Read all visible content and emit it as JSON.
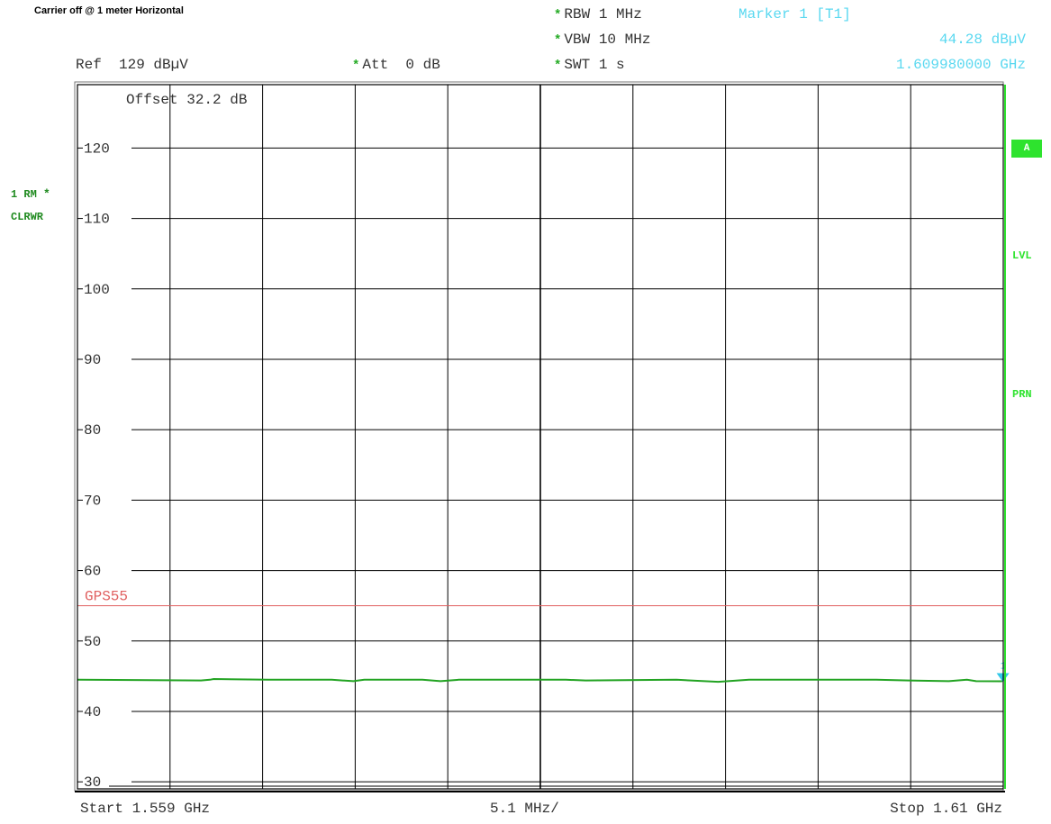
{
  "header": {
    "title": "Carrier off @ 1 meter Horizontal",
    "ref_label": "Ref",
    "ref_value": "129 dBµV",
    "att_label": "Att",
    "att_value": "0 dB",
    "rbw_label": "RBW",
    "rbw_value": "1 MHz",
    "vbw_label": "VBW",
    "vbw_value": "10 MHz",
    "swt_label": "SWT",
    "swt_value": "1 s",
    "marker_label": "Marker 1 [T1]",
    "marker_level": "44.28 dBµV",
    "marker_freq": "1.609980000 GHz",
    "star": "*"
  },
  "sidebar": {
    "trace_label": "1 RM",
    "trace_mode": "CLRWR",
    "a_box": "A",
    "lvl": "LVL",
    "prn": "PRN"
  },
  "footer": {
    "start": "Start 1.559 GHz",
    "span_div": "5.1 MHz/",
    "stop": "Stop 1.61 GHz"
  },
  "colors": {
    "trace": "#22a322",
    "limit_line": "#e06060",
    "marker": "#33c8e8",
    "grid": "#000000",
    "accent_green": "#2ee32e"
  },
  "chart_data": {
    "type": "line",
    "title": "Carrier off @ 1 meter Horizontal",
    "xlabel": "",
    "ylabel": "",
    "xlim": [
      1.559,
      1.61
    ],
    "ylim": [
      29,
      129
    ],
    "y_ticks": [
      120,
      110,
      100,
      90,
      80,
      70,
      60,
      50,
      40,
      30
    ],
    "offset_text": "Offset  32.2 dB",
    "grid": true,
    "limit_lines": [
      {
        "name": "GPS55",
        "value": 55
      }
    ],
    "series": [
      {
        "x": [
          1.559,
          1.5665,
          1.5658,
          1.5663,
          1.5695,
          1.573,
          1.5742,
          1.5748,
          1.578,
          1.579,
          1.58,
          1.5859,
          1.587,
          1.592,
          1.5943,
          1.596,
          1.6,
          1.603,
          1.6048,
          1.607,
          1.608,
          1.6085,
          1.6099,
          1.61
        ],
        "values": [
          44.5,
          44.6,
          44.4,
          44.5,
          44.5,
          44.5,
          44.3,
          44.5,
          44.5,
          44.3,
          44.5,
          44.5,
          44.4,
          44.5,
          44.2,
          44.5,
          44.5,
          44.5,
          44.4,
          44.3,
          44.5,
          44.3,
          44.28,
          44.4
        ]
      }
    ],
    "marker": {
      "x": 1.60998,
      "y": 44.28,
      "label": "1"
    }
  }
}
